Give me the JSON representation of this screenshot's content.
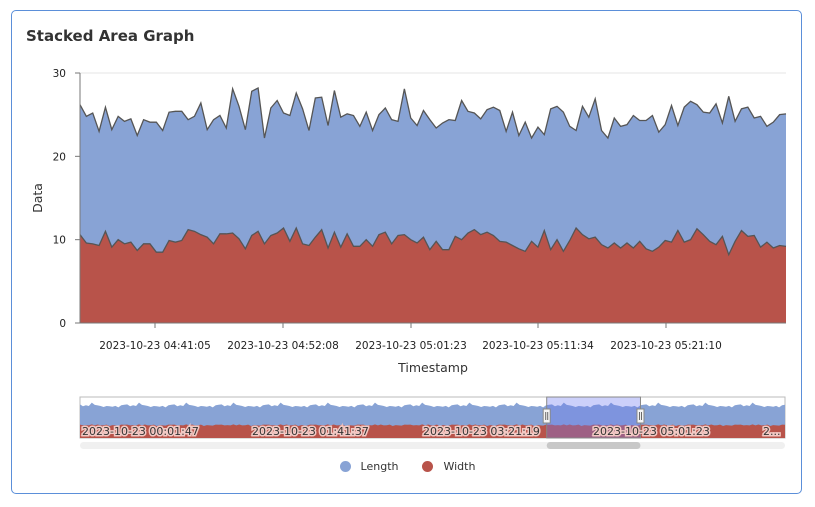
{
  "chart_data": {
    "type": "area",
    "stacked": true,
    "title": "Stacked Area Graph",
    "xlabel": "Timestamp",
    "ylabel": "Data",
    "ylim": [
      0,
      30
    ],
    "yticks": [
      "0",
      "10",
      "20",
      "30"
    ],
    "xticks": [
      "2023-10-23 04:41:05",
      "2023-10-23 04:52:08",
      "2023-10-23 05:01:23",
      "2023-10-23 05:11:34",
      "2023-10-23 05:21:10"
    ],
    "grid": true,
    "legend": "bottom",
    "series": [
      {
        "name": "Width",
        "color": "#b8534a",
        "values": [
          10.6,
          9.6,
          9.5,
          9.3,
          11.0,
          9.1,
          10.0,
          9.5,
          9.7,
          8.7,
          9.5,
          9.5,
          8.5,
          8.5,
          9.9,
          9.7,
          9.9,
          11.2,
          11.0,
          10.6,
          10.3,
          9.5,
          10.7,
          10.7,
          10.8,
          10.1,
          8.9,
          10.5,
          11.0,
          9.5,
          10.5,
          10.8,
          11.4,
          9.8,
          11.4,
          9.5,
          9.3,
          10.3,
          11.2,
          9.0,
          10.9,
          9.1,
          10.7,
          9.2,
          9.2,
          10.0,
          9.2,
          10.6,
          10.9,
          9.5,
          10.5,
          10.6,
          10.0,
          9.6,
          10.3,
          8.8,
          9.8,
          8.8,
          8.8,
          10.4,
          10.0,
          10.8,
          11.2,
          10.6,
          10.9,
          10.5,
          9.8,
          9.7,
          9.3,
          8.9,
          8.6,
          9.8,
          9.1,
          11.1,
          8.8,
          10.0,
          8.6,
          9.9,
          11.4,
          10.6,
          10.1,
          10.3,
          9.4,
          9.0,
          9.6,
          9.0,
          9.6,
          9.0,
          9.8,
          8.9,
          8.6,
          9.1,
          9.9,
          9.7,
          11.1,
          9.7,
          10.0,
          11.3,
          10.6,
          9.8,
          9.4,
          10.4,
          8.2,
          9.8,
          11.1,
          10.4,
          10.5,
          9.1,
          9.7,
          9.0,
          9.3,
          9.2
        ]
      },
      {
        "name": "Length",
        "color": "#88a3d5",
        "values": [
          15.6,
          15.2,
          15.7,
          13.7,
          14.9,
          14.1,
          14.8,
          14.7,
          14.8,
          13.8,
          14.9,
          14.6,
          15.6,
          14.6,
          15.4,
          15.7,
          15.5,
          13.2,
          13.8,
          15.8,
          12.9,
          14.9,
          14.2,
          12.7,
          17.3,
          15.9,
          14.3,
          17.3,
          17.2,
          12.7,
          15.3,
          15.9,
          13.8,
          15.1,
          16.2,
          16.2,
          13.8,
          16.7,
          15.9,
          14.7,
          17.0,
          15.6,
          14.4,
          15.7,
          14.4,
          15.3,
          13.9,
          14.4,
          14.9,
          14.9,
          13.7,
          17.5,
          14.6,
          14.1,
          15.2,
          15.6,
          13.6,
          15.2,
          15.6,
          13.9,
          16.7,
          14.6,
          14.0,
          13.9,
          14.7,
          15.4,
          15.7,
          13.3,
          16.0,
          13.6,
          15.5,
          12.4,
          14.4,
          11.5,
          16.9,
          16.0,
          16.7,
          13.7,
          11.7,
          15.4,
          14.6,
          16.6,
          13.7,
          13.2,
          15.0,
          14.6,
          14.2,
          15.9,
          14.5,
          15.4,
          16.3,
          13.8,
          13.9,
          16.4,
          12.6,
          16.2,
          16.6,
          14.9,
          14.7,
          15.4,
          16.9,
          13.6,
          19.0,
          14.4,
          14.6,
          15.5,
          14.1,
          15.7,
          13.9,
          15.1,
          15.7,
          15.9
        ]
      }
    ],
    "navigator": {
      "labels": [
        "2023-10-23 00:01:47",
        "2023-10-23 01:41:37",
        "2023-10-23 03:21:19",
        "2023-10-23 05:01:23",
        "2..."
      ],
      "selection_range": [
        0.662,
        0.795
      ]
    }
  },
  "legend": [
    {
      "name": "Length",
      "color": "#88a3d5"
    },
    {
      "name": "Width",
      "color": "#b8534a"
    }
  ]
}
